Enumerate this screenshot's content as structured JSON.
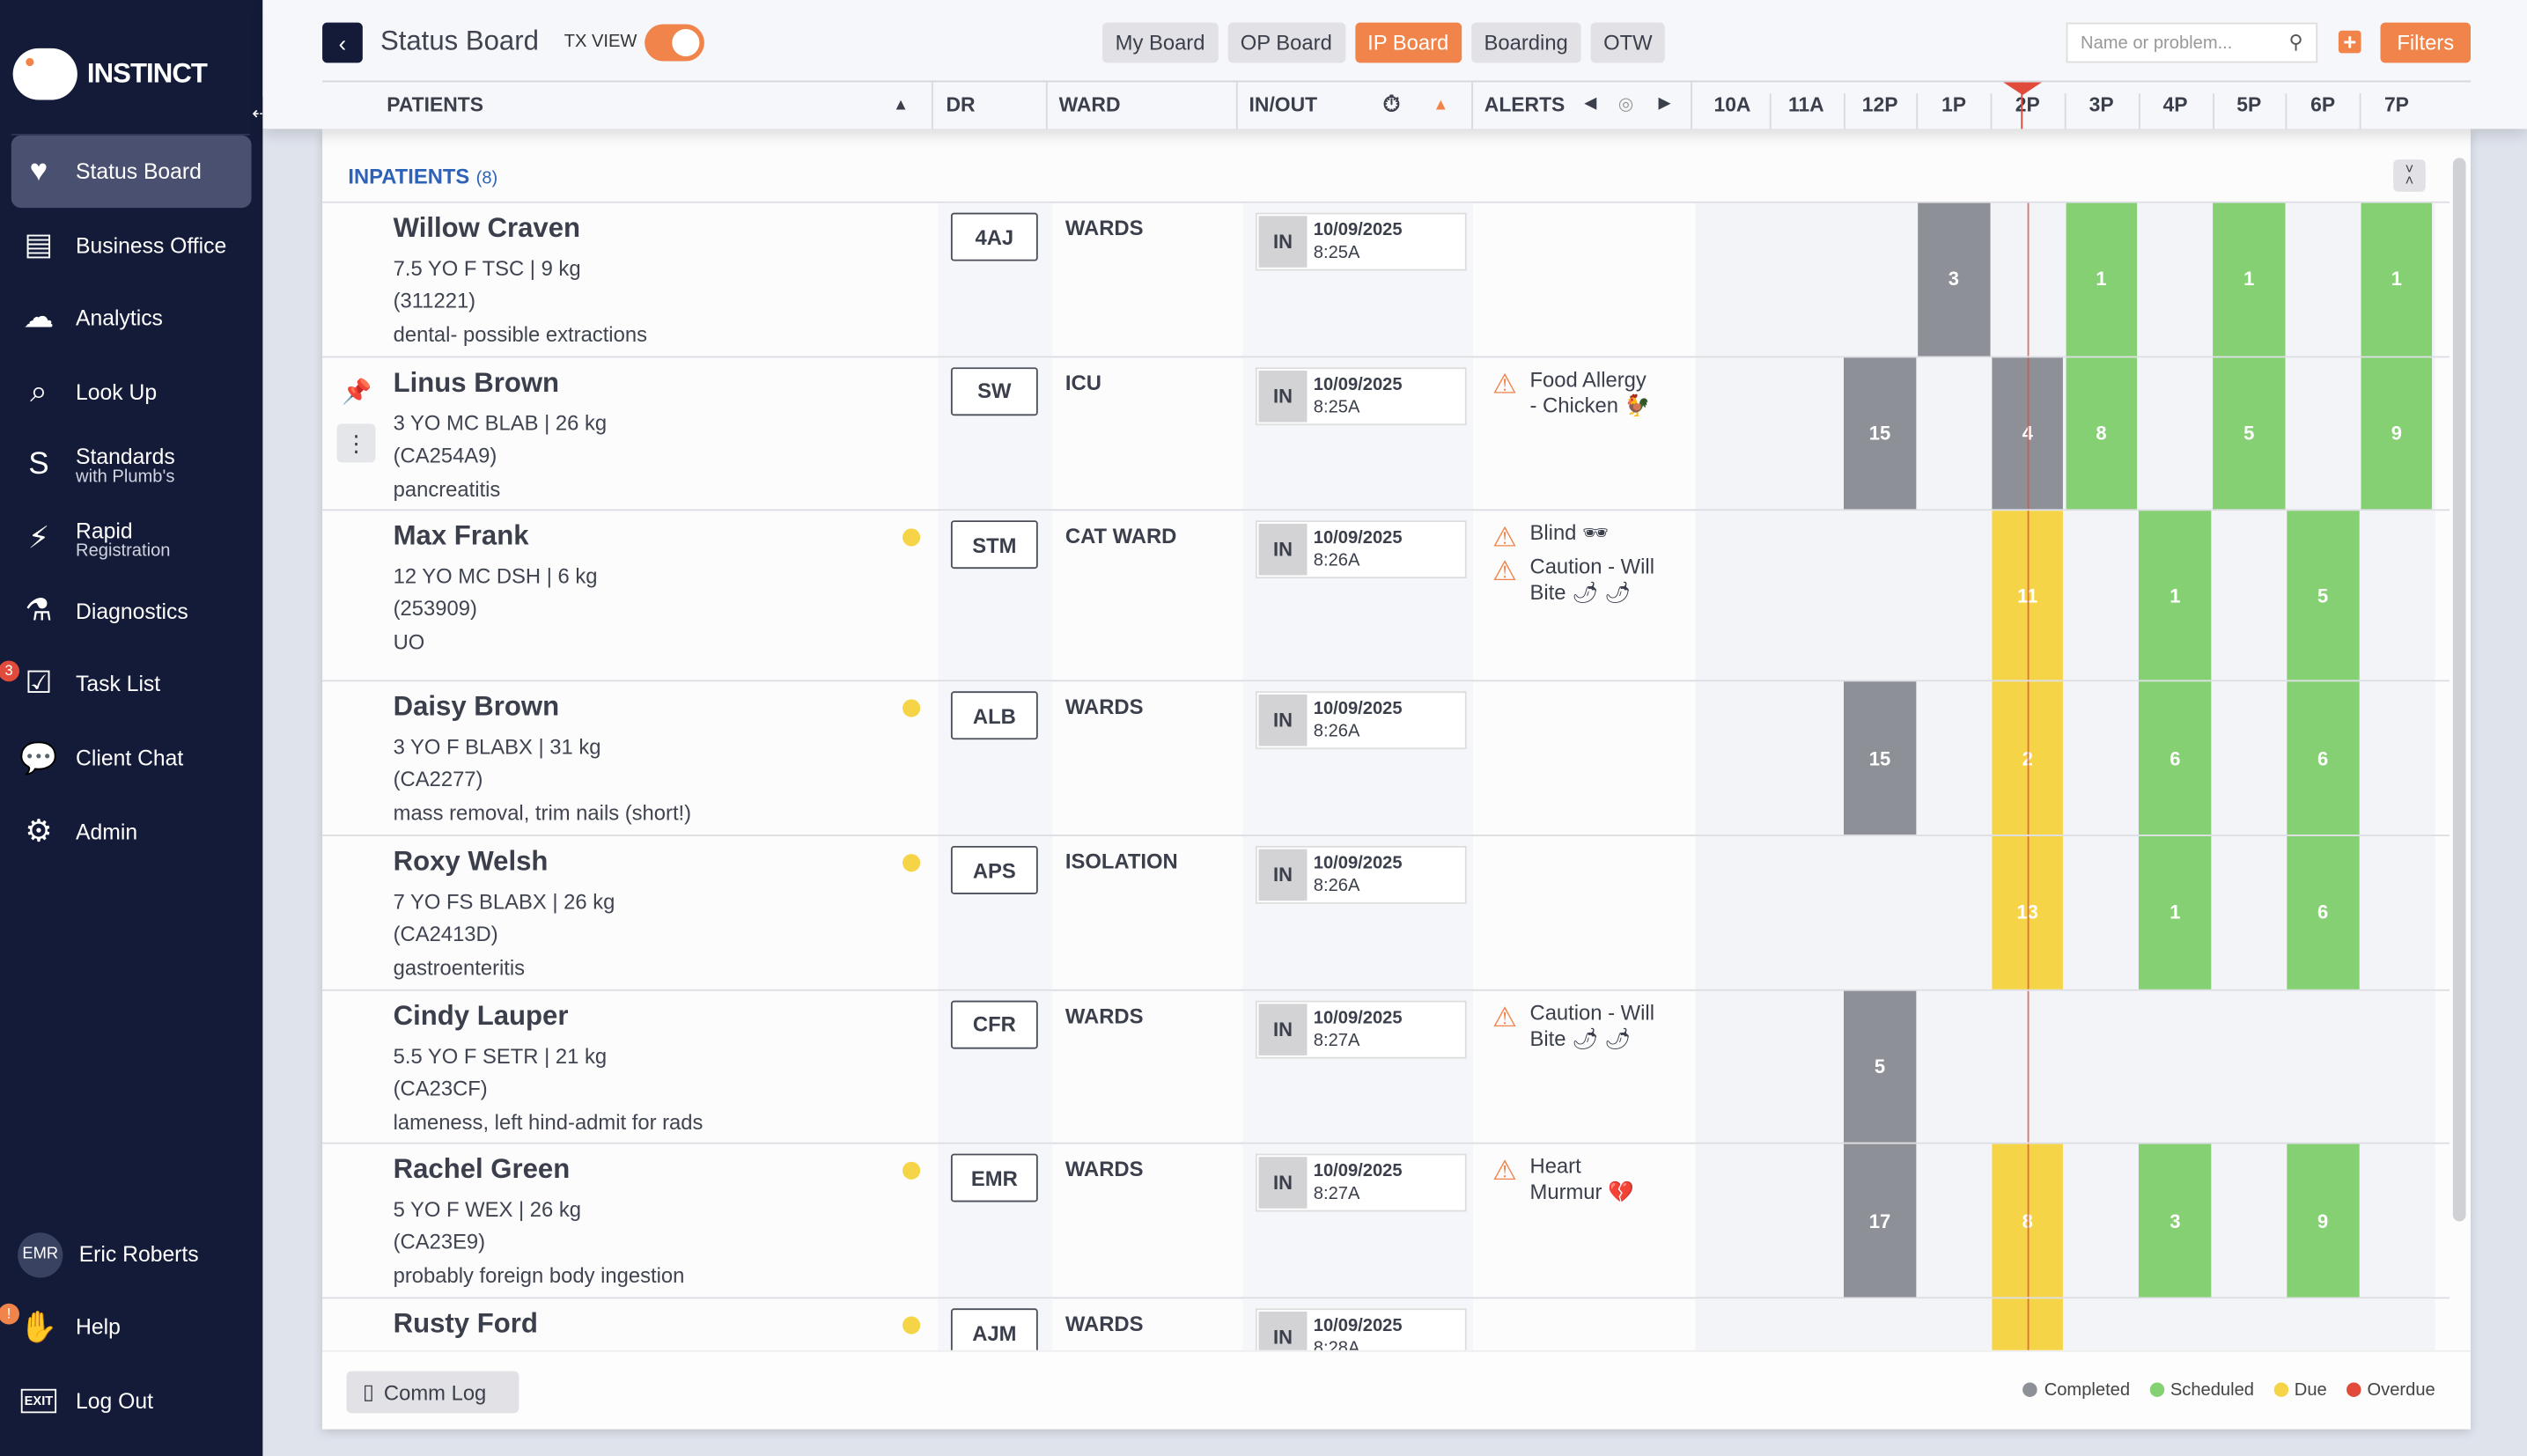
{
  "sidebar": {
    "brand": "INSTINCT",
    "items": [
      {
        "label": "Status Board",
        "icon": "monitor-heart-icon",
        "glyph": "♥"
      },
      {
        "label": "Business Office",
        "icon": "calendar-icon",
        "glyph": "▤"
      },
      {
        "label": "Analytics",
        "icon": "analytics-icon",
        "glyph": "☁"
      },
      {
        "label": "Look Up",
        "icon": "search-icon",
        "glyph": "⌕"
      },
      {
        "label": "Standards",
        "sub": "with Plumb's",
        "icon": "standards-icon",
        "glyph": "S"
      },
      {
        "label": "Rapid",
        "sub": "Registration",
        "icon": "lightning-icon",
        "glyph": "⚡"
      },
      {
        "label": "Diagnostics",
        "icon": "flask-icon",
        "glyph": "⚗"
      },
      {
        "label": "Task List",
        "icon": "checklist-icon",
        "glyph": "☑",
        "badge": "3"
      },
      {
        "label": "Client Chat",
        "icon": "chat-icon",
        "glyph": "💬"
      },
      {
        "label": "Admin",
        "icon": "gear-icon",
        "glyph": "⚙"
      }
    ],
    "user": {
      "initials": "EMR",
      "name": "Eric Roberts"
    },
    "help": {
      "label": "Help",
      "badge": "!"
    },
    "logout": {
      "label": "Log Out",
      "icon_text": "EXIT"
    }
  },
  "header": {
    "title": "Status Board",
    "tx_view_label": "TX VIEW",
    "tx_view_on": true,
    "tabs": [
      "My Board",
      "OP Board",
      "IP Board",
      "Boarding",
      "OTW"
    ],
    "active_tab": "IP Board",
    "search_placeholder": "Name or problem...",
    "filters_label": "Filters"
  },
  "columns": {
    "patients": "PATIENTS",
    "dr": "DR",
    "ward": "WARD",
    "inout": "IN/OUT",
    "alerts": "ALERTS",
    "hours": [
      "10A",
      "11A",
      "12P",
      "1P",
      "2P",
      "3P",
      "4P",
      "5P",
      "6P",
      "7P"
    ],
    "current_hour": "2P"
  },
  "section": {
    "label": "INPATIENTS",
    "count": "(8)"
  },
  "patients": [
    {
      "name": "Willow Craven",
      "sig": "7.5 YO F TSC | 9 kg",
      "id": "(311221)",
      "problem": "dental- possible extractions",
      "dr": "4AJ",
      "ward": "WARDS",
      "status": "IN",
      "date": "10/09/2025",
      "time": "8:25A",
      "alerts": [],
      "tx": [
        {
          "hour": "1P",
          "count": 3,
          "state": "completed"
        },
        {
          "hour": "3P",
          "count": 1,
          "state": "scheduled"
        },
        {
          "hour": "5P",
          "count": 1,
          "state": "scheduled"
        },
        {
          "hour": "7P",
          "count": 1,
          "state": "scheduled"
        }
      ]
    },
    {
      "name": "Linus Brown",
      "sig": "3 YO MC BLAB | 26 kg",
      "id": "(CA254A9)",
      "problem": "pancreatitis",
      "dr": "SW",
      "ward": "ICU",
      "status": "IN",
      "date": "10/09/2025",
      "time": "8:25A",
      "pinned": true,
      "alerts": [
        "Food Allergy - Chicken 🐓"
      ],
      "tx": [
        {
          "hour": "12P",
          "count": 15,
          "state": "completed"
        },
        {
          "hour": "2P",
          "count": 4,
          "state": "completed"
        },
        {
          "hour": "3P",
          "count": 8,
          "state": "scheduled"
        },
        {
          "hour": "5P",
          "count": 5,
          "state": "scheduled"
        },
        {
          "hour": "7P",
          "count": 9,
          "state": "scheduled"
        }
      ]
    },
    {
      "name": "Max Frank",
      "sig": "12 YO MC DSH | 6 kg",
      "id": "(253909)",
      "problem": "UO",
      "dot": true,
      "dr": "STM",
      "ward": "CAT WARD",
      "status": "IN",
      "date": "10/09/2025",
      "time": "8:26A",
      "alerts": [
        "Blind 🕶",
        "Caution - Will Bite 🌶 🌶"
      ],
      "tx": [
        {
          "hour": "2P",
          "count": 11,
          "state": "due"
        },
        {
          "hour": "4P",
          "count": 1,
          "state": "scheduled"
        },
        {
          "hour": "6P",
          "count": 5,
          "state": "scheduled"
        }
      ]
    },
    {
      "name": "Daisy Brown",
      "sig": "3 YO F BLABX | 31 kg",
      "id": "(CA2277)",
      "problem": "mass removal, trim nails (short!)",
      "dot": true,
      "dr": "ALB",
      "ward": "WARDS",
      "status": "IN",
      "date": "10/09/2025",
      "time": "8:26A",
      "alerts": [],
      "tx": [
        {
          "hour": "12P",
          "count": 15,
          "state": "completed"
        },
        {
          "hour": "2P",
          "count": 2,
          "state": "due"
        },
        {
          "hour": "4P",
          "count": 6,
          "state": "scheduled"
        },
        {
          "hour": "6P",
          "count": 6,
          "state": "scheduled"
        }
      ]
    },
    {
      "name": "Roxy Welsh",
      "sig": "7 YO FS BLABX | 26 kg",
      "id": "(CA2413D)",
      "problem": "gastroenteritis",
      "dot": true,
      "dr": "APS",
      "ward": "ISOLATION",
      "status": "IN",
      "date": "10/09/2025",
      "time": "8:26A",
      "alerts": [],
      "tx": [
        {
          "hour": "2P",
          "count": 13,
          "state": "due"
        },
        {
          "hour": "4P",
          "count": 1,
          "state": "scheduled"
        },
        {
          "hour": "6P",
          "count": 6,
          "state": "scheduled"
        }
      ]
    },
    {
      "name": "Cindy Lauper",
      "sig": "5.5 YO F SETR | 21 kg",
      "id": "(CA23CF)",
      "problem": "lameness, left hind-admit for rads",
      "dr": "CFR",
      "ward": "WARDS",
      "status": "IN",
      "date": "10/09/2025",
      "time": "8:27A",
      "alerts": [
        "Caution - Will Bite 🌶 🌶"
      ],
      "tx": [
        {
          "hour": "12P",
          "count": 5,
          "state": "completed"
        }
      ]
    },
    {
      "name": "Rachel Green",
      "sig": "5 YO F WEX | 26 kg",
      "id": "(CA23E9)",
      "problem": "probably foreign body ingestion",
      "dot": true,
      "dr": "EMR",
      "ward": "WARDS",
      "status": "IN",
      "date": "10/09/2025",
      "time": "8:27A",
      "alerts": [
        "Heart Murmur 💔"
      ],
      "tx": [
        {
          "hour": "12P",
          "count": 17,
          "state": "completed"
        },
        {
          "hour": "2P",
          "count": 8,
          "state": "due"
        },
        {
          "hour": "4P",
          "count": 3,
          "state": "scheduled"
        },
        {
          "hour": "6P",
          "count": 9,
          "state": "scheduled"
        }
      ]
    },
    {
      "name": "Rusty Ford",
      "sig": "",
      "id": "",
      "problem": "",
      "dot": true,
      "dr": "AJM",
      "ward": "WARDS",
      "status": "IN",
      "date": "10/09/2025",
      "time": "8:28A",
      "alerts": [],
      "tx": [
        {
          "hour": "2P",
          "state": "due"
        }
      ]
    }
  ],
  "footer": {
    "comm_log": "Comm Log",
    "legend": [
      {
        "label": "Completed",
        "color": "#8e9097"
      },
      {
        "label": "Scheduled",
        "color": "#84d073"
      },
      {
        "label": "Due",
        "color": "#f5d547"
      },
      {
        "label": "Overdue",
        "color": "#e04b3b"
      }
    ]
  },
  "colors": {
    "accent": "#f0844a",
    "sidebar": "#141b38",
    "completed": "#8e9097",
    "scheduled": "#84d073",
    "due": "#f5d547",
    "overdue": "#e04b3b",
    "link": "#2d62b8"
  }
}
